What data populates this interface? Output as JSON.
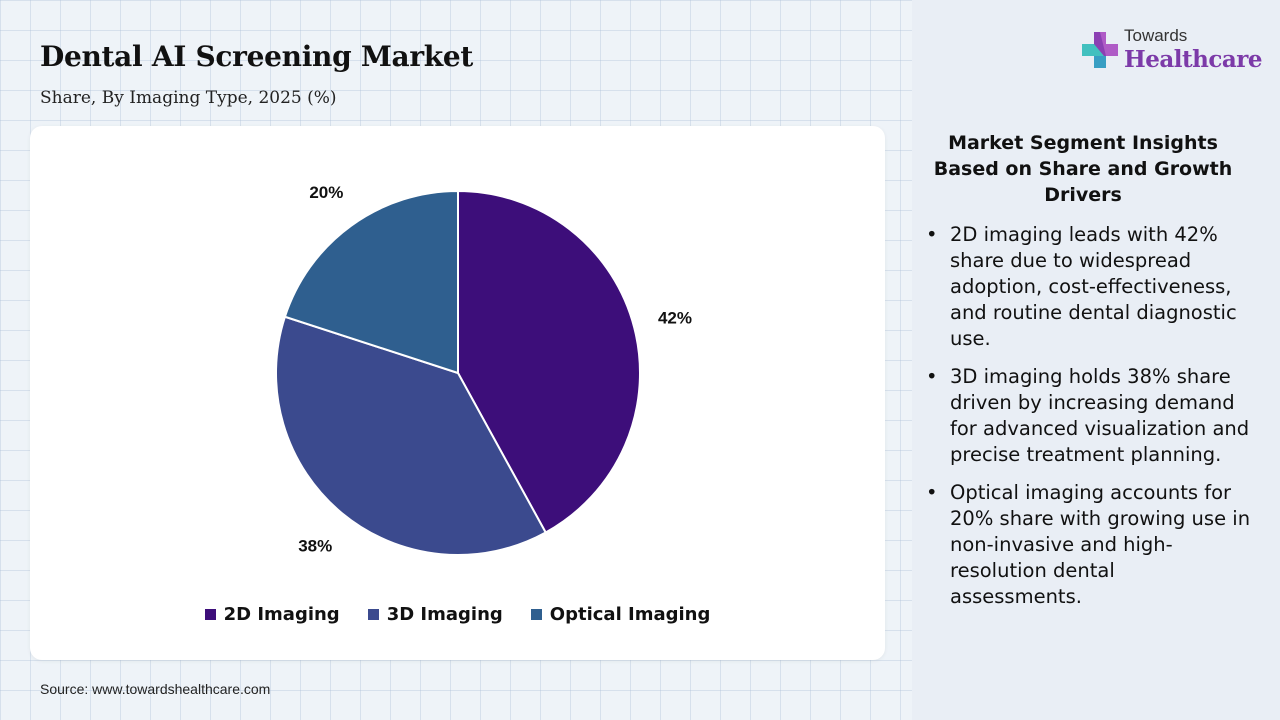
{
  "header": {
    "title": "Dental AI Screening Market",
    "subtitle": "Share, By Imaging Type, 2025 (%)"
  },
  "logo": {
    "top_text": "Towards",
    "main_text": "Healthcare",
    "icon": "plus-cross-icon"
  },
  "chart_data": {
    "type": "pie",
    "title": "",
    "categories": [
      "2D Imaging",
      "3D Imaging",
      "Optical Imaging"
    ],
    "values": [
      42,
      38,
      20
    ],
    "labels": [
      "42%",
      "38%",
      "20%"
    ],
    "colors": [
      "#3d0e7a",
      "#3b4a8e",
      "#2f5f8f"
    ],
    "start": "12 o'clock, clockwise",
    "legend_position": "bottom"
  },
  "insights": {
    "title": "Market Segment Insights Based on Share and Growth Drivers",
    "items": [
      "2D imaging leads with 42% share due to widespread adoption, cost-effectiveness, and routine dental diagnostic use.",
      "3D imaging holds 38% share driven by increasing demand for advanced visualization and precise treatment planning.",
      "Optical imaging accounts for 20% share with growing use in non-invasive and high-resolution dental assessments."
    ]
  },
  "footer": {
    "source": "Source: www.towardshealthcare.com"
  }
}
